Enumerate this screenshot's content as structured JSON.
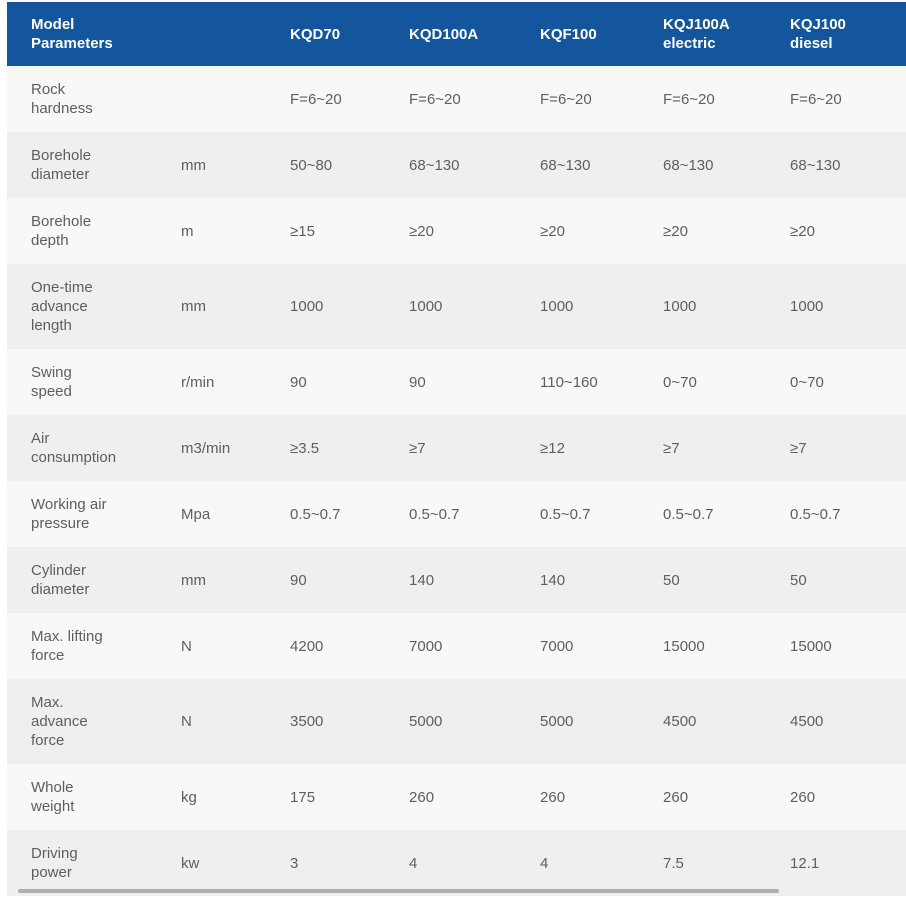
{
  "colors": {
    "header_bg": "#14569d",
    "header_text": "#ffffff",
    "row_odd": "#f8f8f6",
    "row_even": "#efefee",
    "text": "#5e5e5e",
    "scrollbar": "#b0b0b0",
    "page_bg": "#ffffff"
  },
  "table": {
    "header": {
      "corner": "Model\nParameters",
      "columns": [
        "KQD70",
        "KQD100A",
        "KQF100",
        "KQJ100A\nelectric",
        "KQJ100\ndiesel"
      ]
    },
    "rows": [
      {
        "parameter": "Rock\nhardness",
        "unit": "",
        "values": [
          "F=6~20",
          "F=6~20",
          "F=6~20",
          "F=6~20",
          "F=6~20"
        ]
      },
      {
        "parameter": "Borehole\ndiameter",
        "unit": "mm",
        "values": [
          "50~80",
          "68~130",
          "68~130",
          "68~130",
          "68~130"
        ]
      },
      {
        "parameter": "Borehole\ndepth",
        "unit": "m",
        "values": [
          "≥15",
          "≥20",
          "≥20",
          "≥20",
          "≥20"
        ]
      },
      {
        "parameter": "One-time\nadvance\nlength",
        "unit": "mm",
        "values": [
          "1000",
          "1000",
          "1000",
          "1000",
          "1000"
        ]
      },
      {
        "parameter": "Swing\nspeed",
        "unit": "r/min",
        "values": [
          "90",
          "90",
          "110~160",
          "0~70",
          "0~70"
        ]
      },
      {
        "parameter": "Air\nconsumption",
        "unit": "m3/min",
        "values": [
          "≥3.5",
          "≥7",
          "≥12",
          "≥7",
          "≥7"
        ]
      },
      {
        "parameter": "Working air\npressure",
        "unit": "Mpa",
        "values": [
          "0.5~0.7",
          "0.5~0.7",
          "0.5~0.7",
          "0.5~0.7",
          "0.5~0.7"
        ]
      },
      {
        "parameter": "Cylinder\ndiameter",
        "unit": "mm",
        "values": [
          "90",
          "140",
          "140",
          "50",
          "50"
        ]
      },
      {
        "parameter": "Max. lifting\nforce",
        "unit": "N",
        "values": [
          "4200",
          "7000",
          "7000",
          "15000",
          "15000"
        ]
      },
      {
        "parameter": "Max.\nadvance\nforce",
        "unit": "N",
        "values": [
          "3500",
          "5000",
          "5000",
          "4500",
          "4500"
        ]
      },
      {
        "parameter": "Whole\nweight",
        "unit": "kg",
        "values": [
          "175",
          "260",
          "260",
          "260",
          "260"
        ]
      },
      {
        "parameter": "Driving\npower",
        "unit": "kw",
        "values": [
          "3",
          "4",
          "4",
          "7.5",
          "12.1"
        ]
      }
    ]
  }
}
